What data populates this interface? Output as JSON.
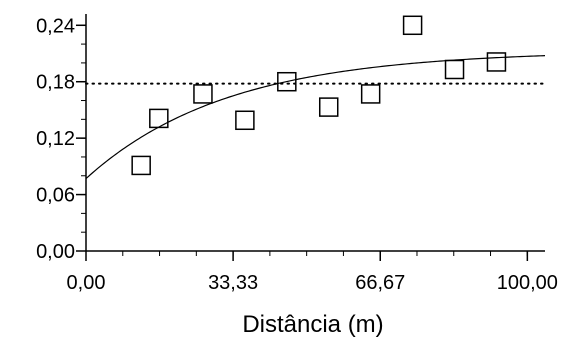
{
  "chart_data": {
    "type": "scatter",
    "xlabel": "Distância (m)",
    "ylabel": "",
    "xlim": [
      0,
      104
    ],
    "ylim": [
      0,
      0.252
    ],
    "x_ticks": [
      {
        "value": 0,
        "label": "0,00"
      },
      {
        "value": 33.33,
        "label": "33,33"
      },
      {
        "value": 66.67,
        "label": "66,67"
      },
      {
        "value": 100,
        "label": "100,00"
      }
    ],
    "y_ticks": [
      {
        "value": 0,
        "label": "0,00"
      },
      {
        "value": 0.06,
        "label": "0,06"
      },
      {
        "value": 0.12,
        "label": "0,12"
      },
      {
        "value": 0.18,
        "label": "0,18"
      },
      {
        "value": 0.24,
        "label": "0,24"
      }
    ],
    "grid": false,
    "series": [
      {
        "kind": "points",
        "marker": "square",
        "x": [
          12.5,
          16.5,
          26.5,
          36,
          45.5,
          55,
          64.5,
          74,
          83.5,
          93
        ],
        "y": [
          0.091,
          0.141,
          0.167,
          0.139,
          0.18,
          0.153,
          0.167,
          0.24,
          0.193,
          0.201
        ]
      },
      {
        "kind": "fit-curve",
        "model": "sill * (1 - exp(-x/range)) + nugget",
        "nugget": 0.077,
        "sill": 0.136,
        "range": 32
      },
      {
        "kind": "reference-line",
        "style": "dotted",
        "y": 0.178
      }
    ]
  }
}
